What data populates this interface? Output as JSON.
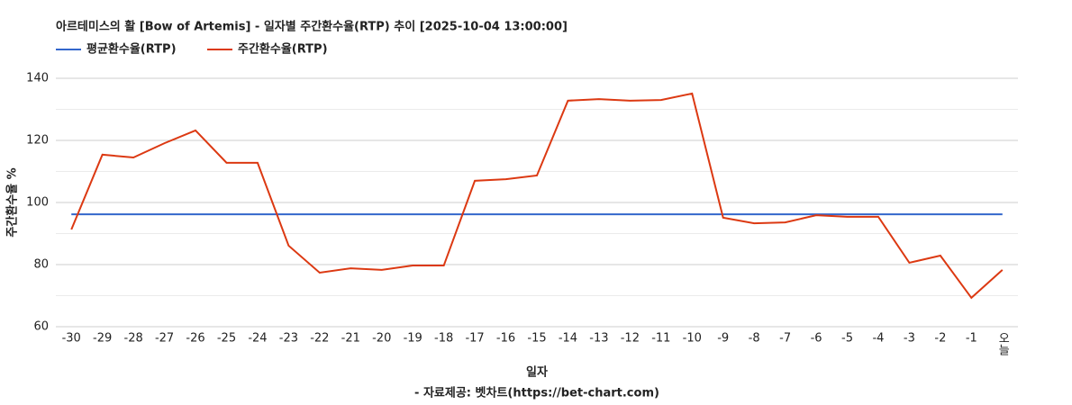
{
  "chart_data": {
    "type": "line",
    "title": "아르테미스의 활 [Bow of Artemis] - 일자별 주간환수율(RTP) 추이 [2025-10-04 13:00:00]",
    "x_label": "일자",
    "y_label": "주간환수율 %",
    "source": "- 자료제공: 벳차트(https://bet-chart.com)",
    "categories": [
      "-30",
      "-29",
      "-28",
      "-27",
      "-26",
      "-25",
      "-24",
      "-23",
      "-22",
      "-21",
      "-20",
      "-19",
      "-18",
      "-17",
      "-16",
      "-15",
      "-14",
      "-13",
      "-12",
      "-11",
      "-10",
      "-9",
      "-8",
      "-7",
      "-6",
      "-5",
      "-4",
      "-3",
      "-2",
      "-1",
      "오늘"
    ],
    "series": [
      {
        "name": "평균환수율(RTP)",
        "color": "#3366cc",
        "values": [
          96.2,
          96.2,
          96.2,
          96.2,
          96.2,
          96.2,
          96.2,
          96.2,
          96.2,
          96.2,
          96.2,
          96.2,
          96.2,
          96.2,
          96.2,
          96.2,
          96.2,
          96.2,
          96.2,
          96.2,
          96.2,
          96.2,
          96.2,
          96.2,
          96.2,
          96.2,
          96.2,
          96.2,
          96.2,
          96.2,
          96.2
        ]
      },
      {
        "name": "주간환수율(RTP)",
        "color": "#dc3912",
        "values": [
          91.3,
          115.4,
          114.5,
          119.1,
          123.2,
          112.8,
          112.8,
          86.1,
          77.4,
          78.8,
          78.3,
          79.7,
          79.7,
          107.0,
          107.5,
          108.7,
          132.8,
          133.3,
          132.8,
          133.0,
          135.1,
          95.1,
          93.3,
          93.6,
          95.9,
          95.4,
          95.4,
          80.6,
          82.9,
          69.3,
          78.3
        ]
      }
    ],
    "ylim": [
      60,
      140
    ],
    "yticks": [
      60,
      80,
      100,
      120,
      140
    ],
    "grid": true,
    "legend": "top-left"
  }
}
